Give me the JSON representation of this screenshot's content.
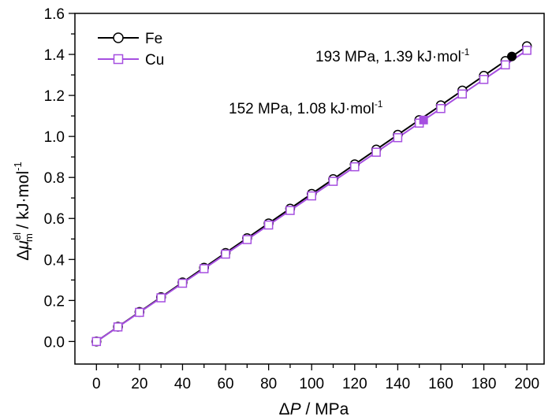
{
  "chart_data": {
    "type": "line",
    "x_axis": {
      "ticks": [
        0,
        20,
        40,
        60,
        80,
        100,
        120,
        140,
        160,
        180,
        200
      ],
      "range": [
        -10,
        208
      ],
      "minor_step": 10
    },
    "y_axis": {
      "ticks": [
        0.0,
        0.2,
        0.4,
        0.6,
        0.8,
        1.0,
        1.2,
        1.4,
        1.6
      ],
      "tick_labels": [
        "0.0",
        "0.2",
        "0.4",
        "0.6",
        "0.8",
        "1.0",
        "1.2",
        "1.4",
        "1.6"
      ],
      "range": [
        -0.11,
        1.6
      ],
      "minor_step": 0.1
    },
    "grid": false,
    "legend_position": "top-left",
    "series": [
      {
        "name": "Fe",
        "color": "#000000",
        "marker": "circle",
        "x": [
          0,
          10,
          20,
          30,
          40,
          50,
          60,
          70,
          80,
          90,
          100,
          110,
          120,
          130,
          140,
          150,
          160,
          170,
          180,
          190,
          200
        ],
        "y": [
          0.0,
          0.072,
          0.144,
          0.216,
          0.288,
          0.36,
          0.432,
          0.504,
          0.576,
          0.648,
          0.72,
          0.792,
          0.864,
          0.936,
          1.008,
          1.08,
          1.152,
          1.224,
          1.296,
          1.368,
          1.44
        ]
      },
      {
        "name": "Cu",
        "color": "#a64fe0",
        "marker": "square",
        "x": [
          0,
          10,
          20,
          30,
          40,
          50,
          60,
          70,
          80,
          90,
          100,
          110,
          120,
          130,
          140,
          150,
          160,
          170,
          180,
          190,
          200
        ],
        "y": [
          0.0,
          0.071,
          0.142,
          0.213,
          0.284,
          0.355,
          0.426,
          0.497,
          0.568,
          0.639,
          0.71,
          0.781,
          0.852,
          0.923,
          0.994,
          1.065,
          1.136,
          1.207,
          1.278,
          1.349,
          1.42
        ]
      }
    ],
    "highlights": [
      {
        "series": "Fe",
        "x": 193,
        "y": 1.39,
        "color": "#000000",
        "marker": "circle",
        "label": "193 MPa, 1.39 kJ·mol",
        "sup": "-1"
      },
      {
        "series": "Cu",
        "x": 152,
        "y": 1.08,
        "color": "#a64fe0",
        "marker": "square",
        "label": "152 MPa, 1.08 kJ·mol",
        "sup": "-1"
      }
    ],
    "xlabel": {
      "delta": "Δ",
      "var": "P",
      "unit": " / MPa"
    },
    "ylabel": {
      "delta": "Δ",
      "var": "μ",
      "sup": "el",
      "sub": "m",
      "unit": " / kJ·mol",
      "unit_sup": "-1"
    }
  }
}
